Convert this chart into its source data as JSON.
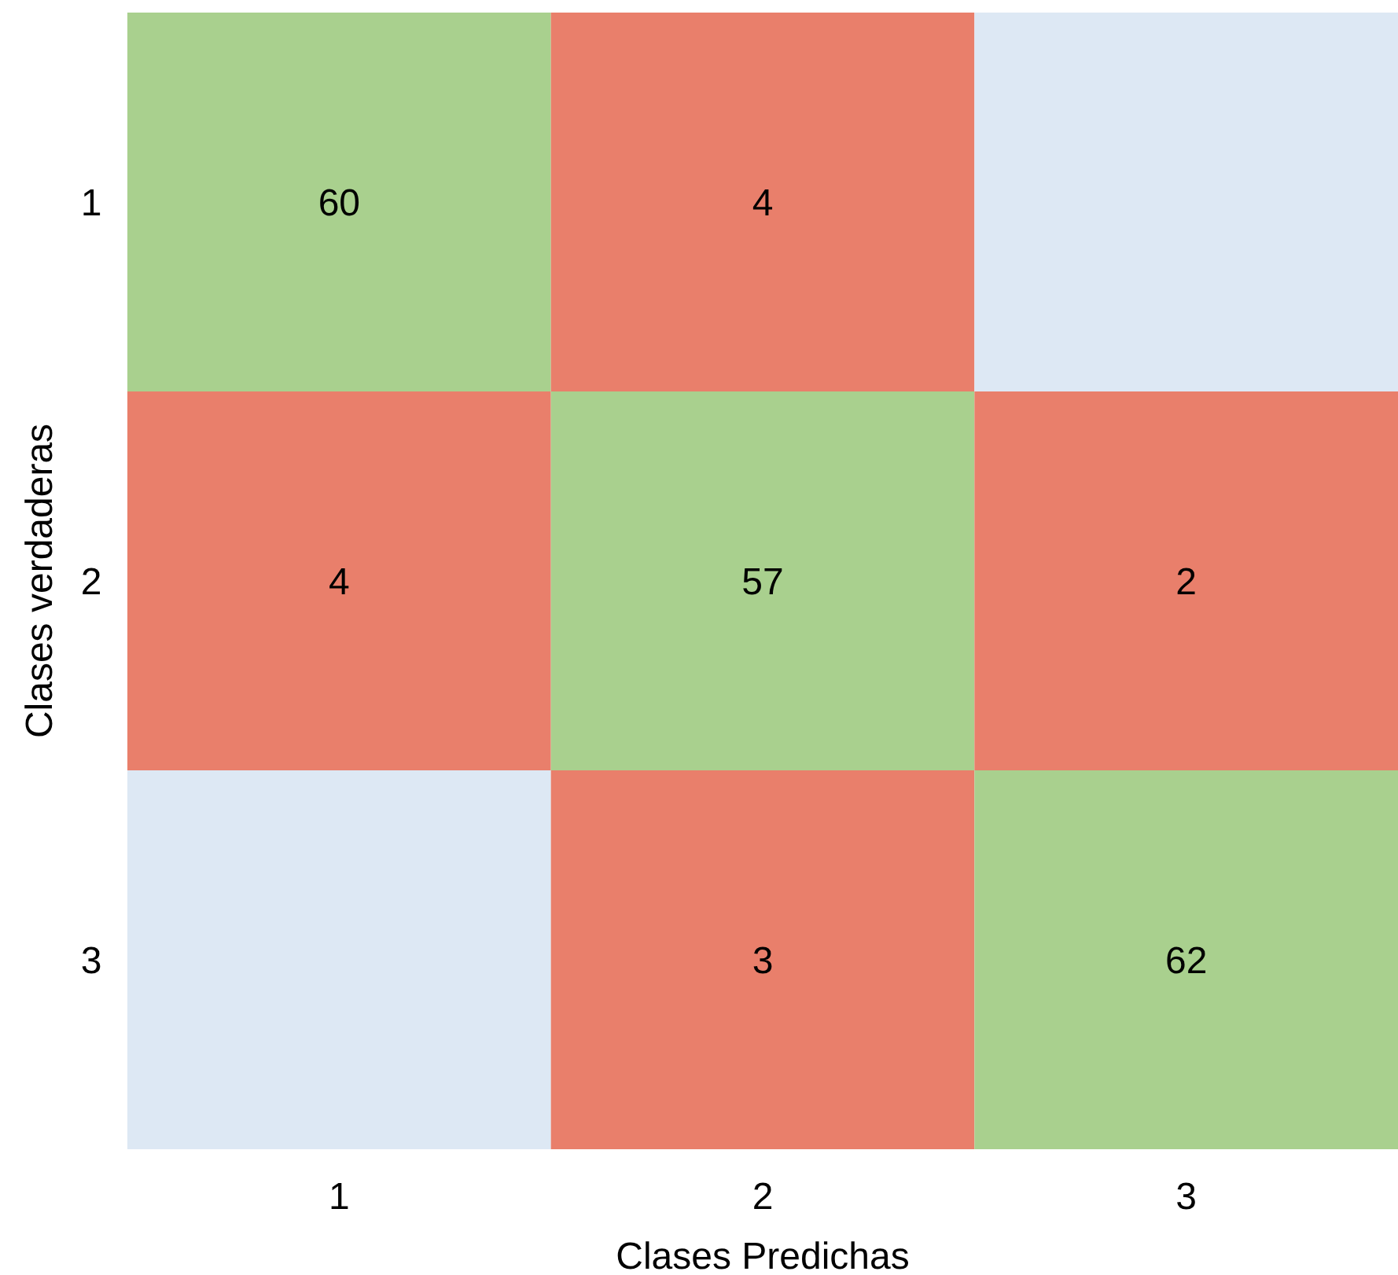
{
  "chart_data": {
    "type": "heatmap",
    "xlabel": "Clases Predichas",
    "ylabel": "Clases verdaderas",
    "categories": [
      "1",
      "2",
      "3"
    ],
    "y_categories": [
      "1",
      "2",
      "3"
    ],
    "cells": [
      [
        60,
        4,
        null
      ],
      [
        4,
        57,
        2
      ],
      [
        null,
        3,
        62
      ]
    ],
    "colors": [
      [
        "#a9d08e",
        "#e97f6b",
        "#dde8f4"
      ],
      [
        "#e97f6b",
        "#a9d08e",
        "#e97f6b"
      ],
      [
        "#dde8f4",
        "#e97f6b",
        "#a9d08e"
      ]
    ],
    "data_labels": true
  }
}
